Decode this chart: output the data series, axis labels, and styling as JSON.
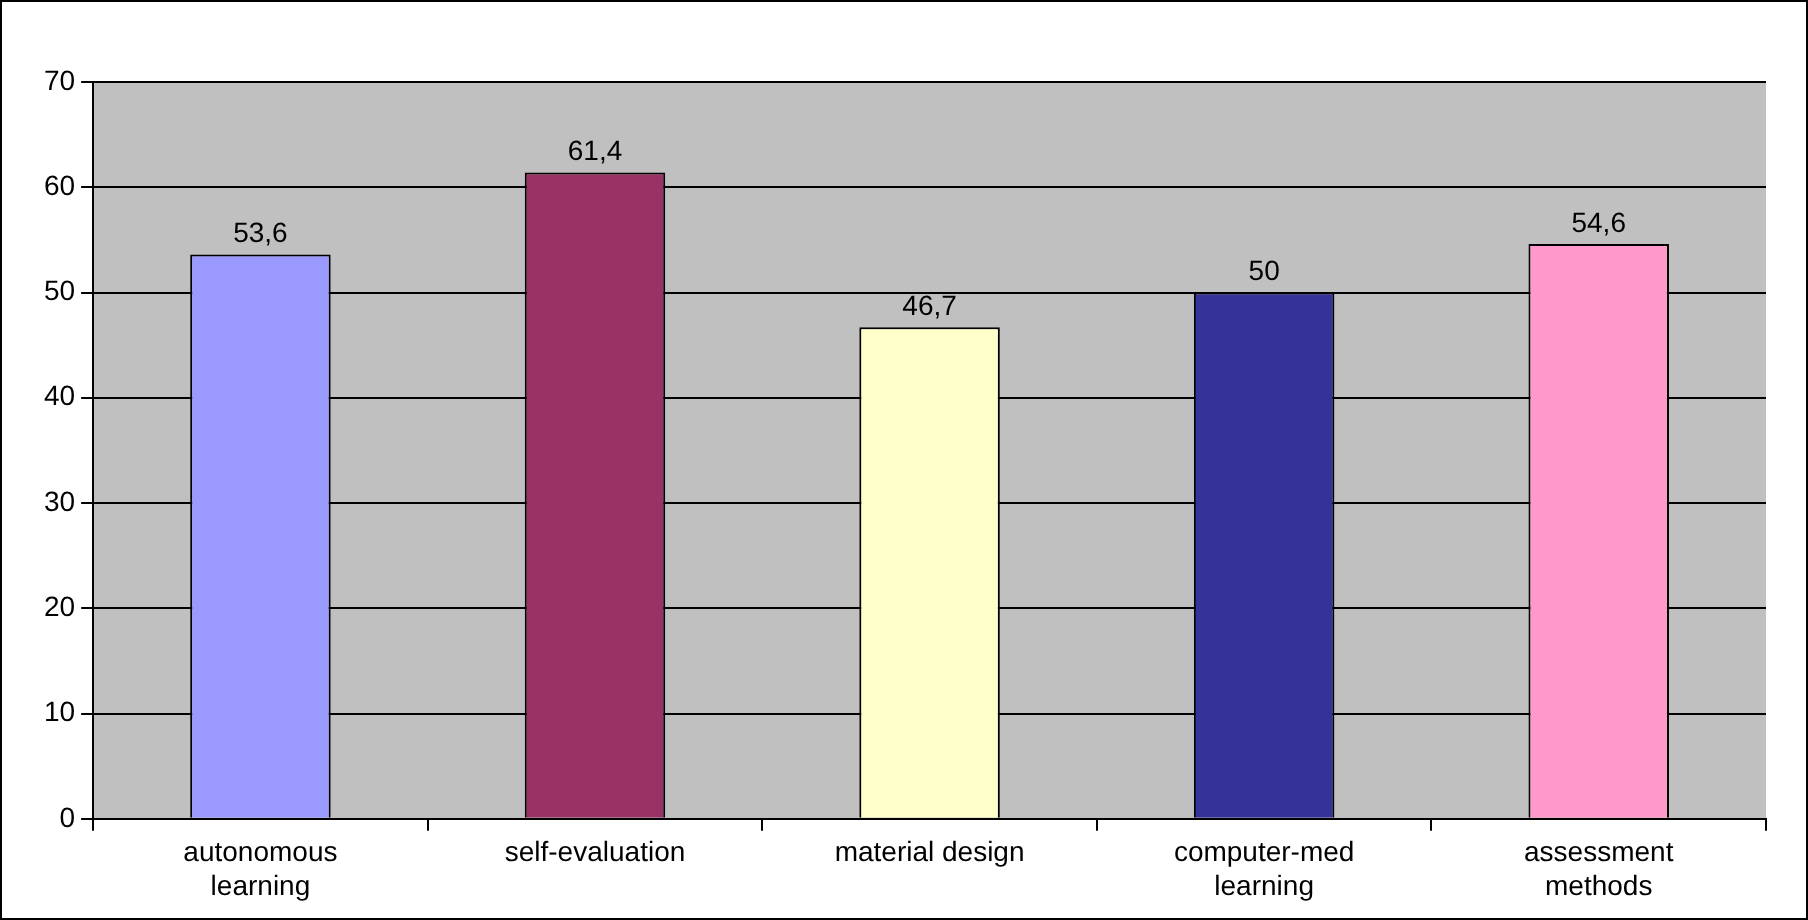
{
  "chart_data": {
    "type": "bar",
    "categories": [
      "autonomous learning",
      "self-evaluation",
      "material design",
      "computer-med learning",
      "assessment methods"
    ],
    "values": [
      53.6,
      61.4,
      46.7,
      50,
      54.6
    ],
    "colors": [
      "#9999ff",
      "#993366",
      "#ffffcc",
      "#333399",
      "#ff99cc"
    ],
    "value_labels": [
      "53,6",
      "61,4",
      "46,7",
      "50",
      "54,6"
    ],
    "ylim": [
      0,
      70
    ],
    "yticks": [
      0,
      10,
      20,
      30,
      40,
      50,
      60,
      70
    ],
    "grid": "y",
    "legend": false
  }
}
